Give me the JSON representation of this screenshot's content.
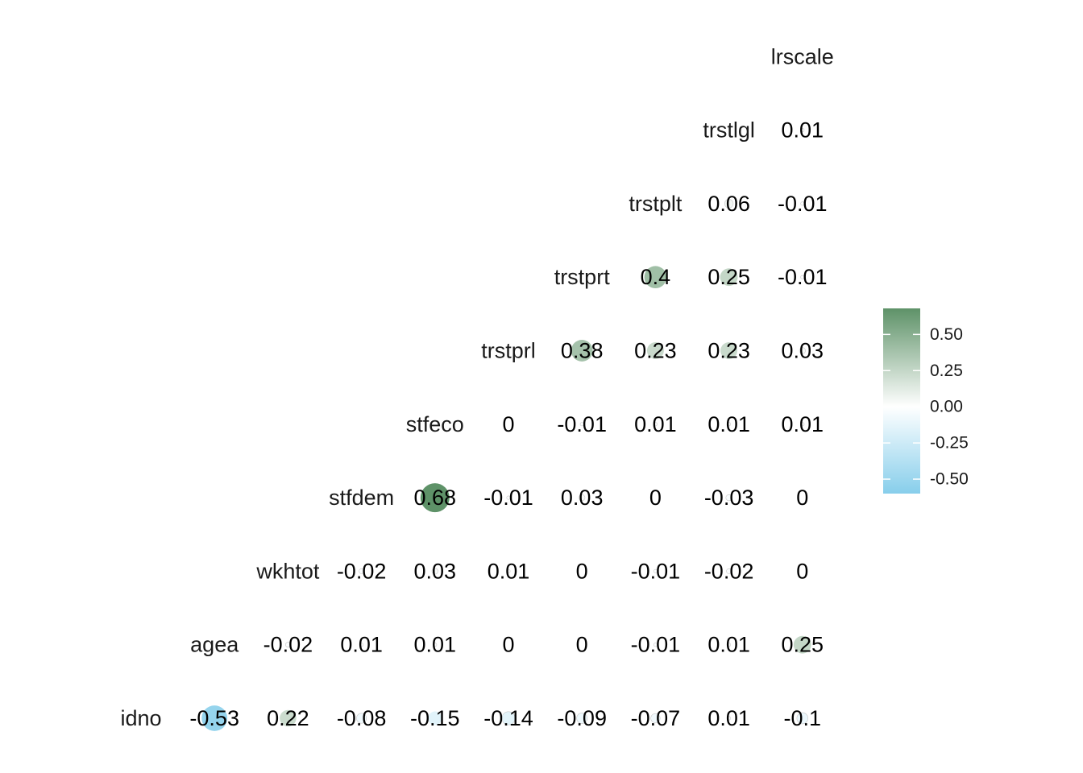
{
  "chart_data": {
    "type": "heatmap",
    "variables": [
      "idno",
      "agea",
      "wkhtot",
      "stfdem",
      "stfeco",
      "trstprl",
      "trstprt",
      "trstplt",
      "trstlgl",
      "lrscale"
    ],
    "cells": [
      {
        "row": "agea",
        "col": "idno",
        "value": -0.53,
        "label": "-0.53"
      },
      {
        "row": "wkhtot",
        "col": "idno",
        "value": 0.22,
        "label": "0.22"
      },
      {
        "row": "wkhtot",
        "col": "agea",
        "value": -0.02,
        "label": "-0.02"
      },
      {
        "row": "stfdem",
        "col": "idno",
        "value": -0.08,
        "label": "-0.08"
      },
      {
        "row": "stfdem",
        "col": "agea",
        "value": 0.01,
        "label": "0.01"
      },
      {
        "row": "stfdem",
        "col": "wkhtot",
        "value": -0.02,
        "label": "-0.02"
      },
      {
        "row": "stfeco",
        "col": "idno",
        "value": -0.15,
        "label": "-0.15"
      },
      {
        "row": "stfeco",
        "col": "agea",
        "value": 0.01,
        "label": "0.01"
      },
      {
        "row": "stfeco",
        "col": "wkhtot",
        "value": 0.03,
        "label": "0.03"
      },
      {
        "row": "stfeco",
        "col": "stfdem",
        "value": 0.68,
        "label": "0.68"
      },
      {
        "row": "trstprl",
        "col": "idno",
        "value": -0.14,
        "label": "-0.14"
      },
      {
        "row": "trstprl",
        "col": "agea",
        "value": 0,
        "label": "0"
      },
      {
        "row": "trstprl",
        "col": "wkhtot",
        "value": 0.01,
        "label": "0.01"
      },
      {
        "row": "trstprl",
        "col": "stfdem",
        "value": -0.01,
        "label": "-0.01"
      },
      {
        "row": "trstprl",
        "col": "stfeco",
        "value": 0,
        "label": "0"
      },
      {
        "row": "trstprt",
        "col": "idno",
        "value": -0.09,
        "label": "-0.09"
      },
      {
        "row": "trstprt",
        "col": "agea",
        "value": 0,
        "label": "0"
      },
      {
        "row": "trstprt",
        "col": "wkhtot",
        "value": 0,
        "label": "0"
      },
      {
        "row": "trstprt",
        "col": "stfdem",
        "value": 0.03,
        "label": "0.03"
      },
      {
        "row": "trstprt",
        "col": "stfeco",
        "value": -0.01,
        "label": "-0.01"
      },
      {
        "row": "trstprt",
        "col": "trstprl",
        "value": 0.38,
        "label": "0.38"
      },
      {
        "row": "trstplt",
        "col": "idno",
        "value": -0.07,
        "label": "-0.07"
      },
      {
        "row": "trstplt",
        "col": "agea",
        "value": -0.01,
        "label": "-0.01"
      },
      {
        "row": "trstplt",
        "col": "wkhtot",
        "value": -0.01,
        "label": "-0.01"
      },
      {
        "row": "trstplt",
        "col": "stfdem",
        "value": 0,
        "label": "0"
      },
      {
        "row": "trstplt",
        "col": "stfeco",
        "value": 0.01,
        "label": "0.01"
      },
      {
        "row": "trstplt",
        "col": "trstprl",
        "value": 0.23,
        "label": "0.23"
      },
      {
        "row": "trstplt",
        "col": "trstprt",
        "value": 0.4,
        "label": "0.4"
      },
      {
        "row": "trstlgl",
        "col": "idno",
        "value": 0.01,
        "label": "0.01"
      },
      {
        "row": "trstlgl",
        "col": "agea",
        "value": 0.01,
        "label": "0.01"
      },
      {
        "row": "trstlgl",
        "col": "wkhtot",
        "value": -0.02,
        "label": "-0.02"
      },
      {
        "row": "trstlgl",
        "col": "stfdem",
        "value": -0.03,
        "label": "-0.03"
      },
      {
        "row": "trstlgl",
        "col": "stfeco",
        "value": 0.01,
        "label": "0.01"
      },
      {
        "row": "trstlgl",
        "col": "trstprl",
        "value": 0.23,
        "label": "0.23"
      },
      {
        "row": "trstlgl",
        "col": "trstprt",
        "value": 0.25,
        "label": "0.25"
      },
      {
        "row": "trstlgl",
        "col": "trstplt",
        "value": 0.06,
        "label": "0.06"
      },
      {
        "row": "lrscale",
        "col": "idno",
        "value": -0.1,
        "label": "-0.1"
      },
      {
        "row": "lrscale",
        "col": "agea",
        "value": 0.25,
        "label": "0.25"
      },
      {
        "row": "lrscale",
        "col": "wkhtot",
        "value": 0,
        "label": "0"
      },
      {
        "row": "lrscale",
        "col": "stfdem",
        "value": 0,
        "label": "0"
      },
      {
        "row": "lrscale",
        "col": "stfeco",
        "value": 0.01,
        "label": "0.01"
      },
      {
        "row": "lrscale",
        "col": "trstprl",
        "value": 0.03,
        "label": "0.03"
      },
      {
        "row": "lrscale",
        "col": "trstprt",
        "value": -0.01,
        "label": "-0.01"
      },
      {
        "row": "lrscale",
        "col": "trstplt",
        "value": -0.01,
        "label": "-0.01"
      },
      {
        "row": "lrscale",
        "col": "trstlgl",
        "value": 0.01,
        "label": "0.01"
      }
    ],
    "legend": {
      "position": "right",
      "range": [
        -0.6,
        0.68
      ],
      "ticks": [
        0.5,
        0.25,
        0,
        -0.25,
        -0.5
      ],
      "tick_labels": [
        "0.50",
        "0.25",
        "0.00",
        "-0.25",
        "-0.50"
      ]
    },
    "colors": {
      "low": "#87ceeb",
      "mid": "#ffffff",
      "high": "#5e9268"
    },
    "grid": false
  }
}
